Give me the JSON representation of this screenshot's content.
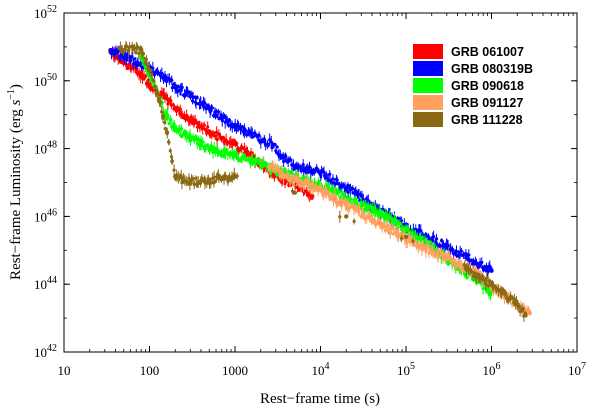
{
  "chart_data": {
    "type": "scatter",
    "title": "",
    "xlabel": "Rest−frame time (s)",
    "ylabel": "Rest−frame Luminosity (erg s⁻¹)",
    "ylabel_main": "Rest−frame Luminosity (erg ",
    "ylabel_unit": "s",
    "ylabel_exp": "−1",
    "ylabel_close": ")",
    "xscale": "log",
    "yscale": "log",
    "xlim": [
      10,
      10000000
    ],
    "ylim": [
      1e+42,
      1e+52
    ],
    "x_ticks": [
      {
        "value": 10,
        "base": "10",
        "exp": ""
      },
      {
        "value": 100,
        "base": "100",
        "exp": ""
      },
      {
        "value": 1000,
        "base": "1000",
        "exp": ""
      },
      {
        "value": 10000,
        "base": "10",
        "exp": "4"
      },
      {
        "value": 100000,
        "base": "10",
        "exp": "5"
      },
      {
        "value": 1000000,
        "base": "10",
        "exp": "6"
      },
      {
        "value": 10000000,
        "base": "10",
        "exp": "7"
      }
    ],
    "y_ticks": [
      {
        "value": 1e+42,
        "base": "10",
        "exp": "42"
      },
      {
        "value": 1e+44,
        "base": "10",
        "exp": "44"
      },
      {
        "value": 1e+46,
        "base": "10",
        "exp": "46"
      },
      {
        "value": 1e+48,
        "base": "10",
        "exp": "48"
      },
      {
        "value": 1e+50,
        "base": "10",
        "exp": "50"
      },
      {
        "value": 1e+52,
        "base": "10",
        "exp": "52"
      }
    ],
    "legend_position": "top-right",
    "series": [
      {
        "name": "GRB 061007",
        "color": "#ff0000",
        "points": [
          [
            35,
            7e+50
          ],
          [
            50,
            3.5e+50
          ],
          [
            80,
            1.6e+50
          ],
          [
            100,
            8e+49
          ],
          [
            150,
            3.2e+49
          ],
          [
            200,
            1.6e+49
          ],
          [
            300,
            7e+48
          ],
          [
            500,
            3.2e+48
          ],
          [
            700,
            2e+48
          ],
          [
            1000,
            1.4e+48
          ],
          [
            3000,
            1.6e+47
          ],
          [
            4000,
            1.1e+47
          ],
          [
            6000,
            7e+46
          ],
          [
            8000,
            4e+46
          ]
        ]
      },
      {
        "name": "GRB 080319B",
        "color": "#0000ff",
        "points": [
          [
            35,
            8e+50
          ],
          [
            50,
            5.5e+50
          ],
          [
            80,
            3e+50
          ],
          [
            100,
            2.2e+50
          ],
          [
            150,
            1.2e+50
          ],
          [
            200,
            7e+49
          ],
          [
            300,
            3.5e+49
          ],
          [
            500,
            1.5e+49
          ],
          [
            700,
            8e+48
          ],
          [
            1000,
            4.5e+48
          ],
          [
            2800,
            1.3e+48
          ],
          [
            3500,
            6e+47
          ],
          [
            5000,
            3e+47
          ],
          [
            10000,
            2e+47
          ],
          [
            20000,
            7e+46
          ],
          [
            50000,
            1.5e+46
          ],
          [
            100000,
            5e+45
          ],
          [
            300000,
            1.3e+45
          ],
          [
            1000000,
            2.5e+44
          ]
        ]
      },
      {
        "name": "GRB 090618",
        "color": "#00ff00",
        "points": [
          [
            80,
            5e+50
          ],
          [
            100,
            1.5e+50
          ],
          [
            130,
            3e+49
          ],
          [
            160,
            8e+48
          ],
          [
            200,
            4e+48
          ],
          [
            300,
            2e+48
          ],
          [
            500,
            1e+48
          ],
          [
            1000,
            6e+47
          ],
          [
            2000,
            3.5e+47
          ],
          [
            3000,
            2.2e+47
          ],
          [
            5000,
            1.5e+47
          ],
          [
            10000,
            8e+46
          ],
          [
            20000,
            3.5e+46
          ],
          [
            50000,
            1.2e+46
          ],
          [
            100000,
            4e+45
          ],
          [
            200000,
            1.3e+45
          ],
          [
            400000,
            3e+44
          ],
          [
            700000,
            1.2e+44
          ],
          [
            1000000,
            6e+43
          ]
        ]
      },
      {
        "name": "GRB 091127",
        "color": "#ffa060",
        "points": [
          [
            2500,
            3e+47
          ],
          [
            4000,
            1.5e+47
          ],
          [
            10000,
            6e+46
          ],
          [
            20000,
            2.2e+46
          ],
          [
            50000,
            6e+45
          ],
          [
            100000,
            2.2e+45
          ],
          [
            300000,
            6e+44
          ],
          [
            700000,
            2e+44
          ],
          [
            1000000,
            9e+43
          ],
          [
            1500000,
            4.5e+43
          ],
          [
            2000000,
            2.5e+43
          ],
          [
            2800000,
            1.4e+43
          ]
        ]
      },
      {
        "name": "GRB 111228",
        "color": "#8b6914",
        "points": [
          [
            45,
            9e+50
          ],
          [
            80,
            8e+50
          ],
          [
            100,
            2e+50
          ],
          [
            130,
            2.5e+49
          ],
          [
            160,
            3e+48
          ],
          [
            200,
            1.5e+47
          ],
          [
            300,
            1e+47
          ],
          [
            500,
            1.2e+47
          ],
          [
            1000,
            1.5e+47
          ],
          [
            5000,
            5e+46
          ],
          [
            20000,
            1e+46
          ],
          [
            100000,
            2.5e+45
          ],
          [
            500000,
            3e+44
          ],
          [
            1000000,
            1e+44
          ],
          [
            2000000,
            2.5e+43
          ],
          [
            2500000,
            1.2e+43
          ]
        ]
      }
    ]
  }
}
